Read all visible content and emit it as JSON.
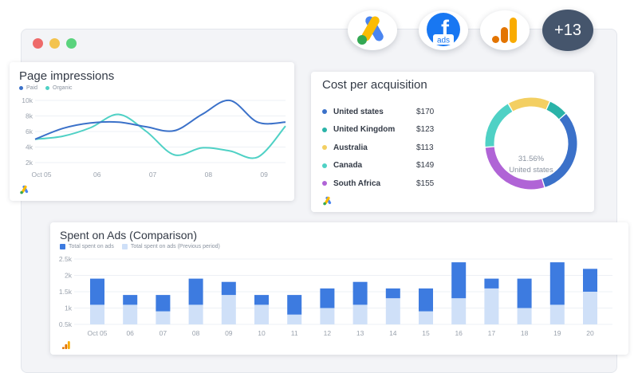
{
  "colors": {
    "paid": "#3b71c9",
    "organic": "#4fd1c5",
    "dark_blue_bar": "#3d7be0",
    "light_blue_bar": "#cfe0f8"
  },
  "window": {
    "traffic_lights": [
      "#ee6a6a",
      "#f3c34e",
      "#5ad37d"
    ]
  },
  "integrations": {
    "icons": [
      "google-ads-icon",
      "facebook-ads-icon",
      "google-analytics-icon"
    ],
    "facebook_label": "ads",
    "more_label": "+13"
  },
  "page_impressions": {
    "title": "Page impressions",
    "legend": [
      {
        "name": "Paid",
        "color": "#3b71c9"
      },
      {
        "name": "Organic",
        "color": "#4fd1c5"
      }
    ],
    "y_ticks": [
      "10k",
      "8k",
      "6k",
      "4k",
      "2k"
    ],
    "x_ticks": [
      "Oct 05",
      "06",
      "07",
      "08",
      "09"
    ],
    "source_icon": "google-ads-icon"
  },
  "cpa": {
    "title": "Cost per acquisition",
    "rows": [
      {
        "country": "United states",
        "value": "$170",
        "color": "#3b71c9"
      },
      {
        "country": "United Kingdom",
        "value": "$123",
        "color": "#2ab3a8"
      },
      {
        "country": "Australia",
        "value": "$113",
        "color": "#f3cf62"
      },
      {
        "country": "Canada",
        "value": "$149",
        "color": "#4fd1c5"
      },
      {
        "country": "South Africa",
        "value": "$155",
        "color": "#b064d6"
      }
    ],
    "donut_percent": "31.56%",
    "donut_label": "United states",
    "source_icon": "google-ads-icon"
  },
  "spent_on_ads": {
    "title": "Spent on Ads (Comparison)",
    "legend": [
      {
        "name": "Total spent on ads",
        "color": "#3d7be0"
      },
      {
        "name": "Total spent on ads (Previous period)",
        "color": "#cfe0f8"
      }
    ],
    "y_ticks": [
      "2.5k",
      "2k",
      "1.5k",
      "1k",
      "0.5k"
    ],
    "source_icon": "google-analytics-icon"
  },
  "chart_data": [
    {
      "type": "line",
      "title": "Page impressions",
      "x": [
        "Oct 05",
        "",
        "06",
        "",
        "07",
        "",
        "08",
        "",
        "09",
        ""
      ],
      "series": [
        {
          "name": "Paid",
          "values": [
            5.0,
            6.4,
            7.1,
            7.2,
            6.6,
            6.1,
            8.2,
            10.0,
            7.2,
            7.2
          ]
        },
        {
          "name": "Organic",
          "values": [
            5.0,
            5.4,
            6.5,
            8.2,
            6.0,
            3.0,
            3.9,
            3.5,
            2.7,
            6.7
          ]
        }
      ],
      "ylim": [
        2,
        10
      ],
      "y_ticks": [
        "10k",
        "8k",
        "6k",
        "4k",
        "2k"
      ]
    },
    {
      "type": "pie",
      "title": "Cost per acquisition",
      "categories": [
        "United states",
        "United Kingdom",
        "Australia",
        "Canada",
        "South Africa"
      ],
      "values": [
        31.56,
        7,
        15,
        18,
        28.44
      ],
      "center_text": "31.56% United states"
    },
    {
      "type": "bar",
      "title": "Spent on Ads (Comparison)",
      "categories": [
        "Oct 05",
        "06",
        "07",
        "08",
        "09",
        "10",
        "11",
        "12",
        "13",
        "14",
        "15",
        "16",
        "17",
        "18",
        "19",
        "20"
      ],
      "series": [
        {
          "name": "Total spent on ads",
          "values": [
            1.9,
            1.4,
            1.4,
            1.9,
            1.8,
            1.4,
            1.4,
            1.6,
            1.8,
            1.6,
            1.6,
            2.4,
            1.9,
            1.9,
            2.4,
            2.2
          ]
        },
        {
          "name": "Total spent on ads (Previous period)",
          "values": [
            1.1,
            1.1,
            0.9,
            1.1,
            1.4,
            1.1,
            0.8,
            1.0,
            1.1,
            1.3,
            0.9,
            1.3,
            1.6,
            1.0,
            1.1,
            1.5
          ]
        }
      ],
      "ylim": [
        0.5,
        2.5
      ],
      "y_ticks": [
        "2.5k",
        "2k",
        "1.5k",
        "1k",
        "0.5k"
      ]
    }
  ]
}
